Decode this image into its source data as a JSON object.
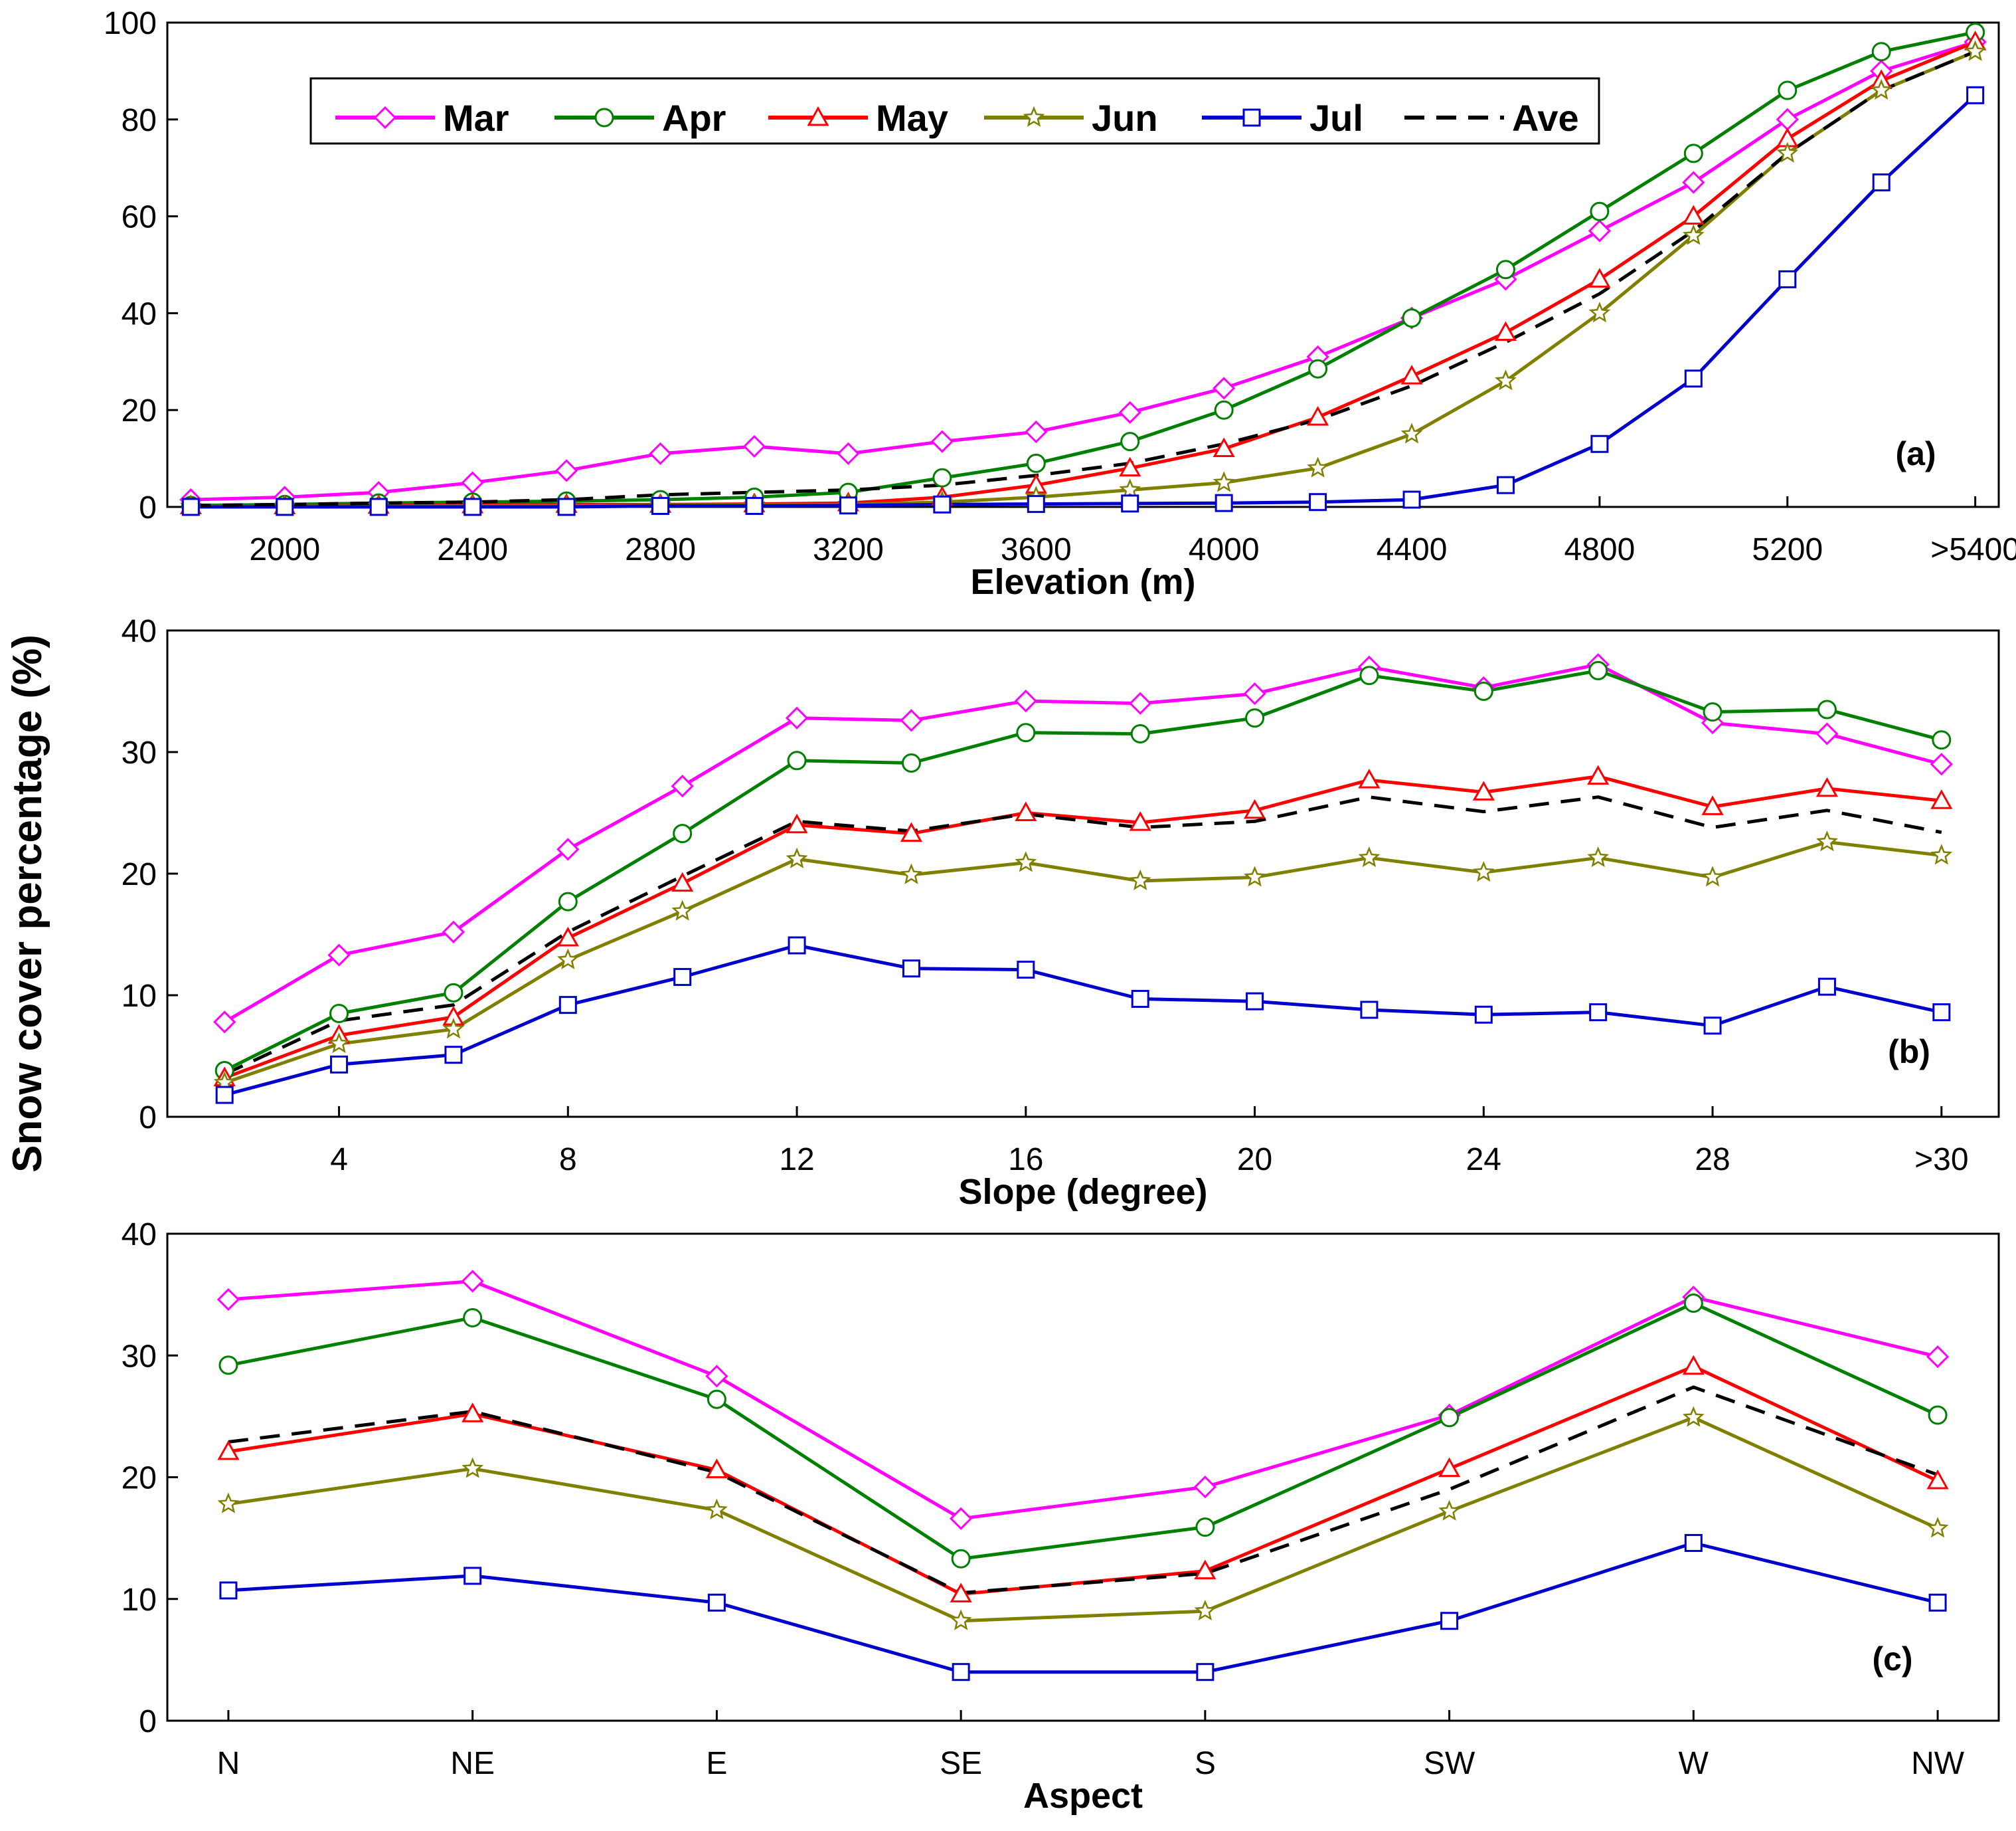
{
  "figure": {
    "y_label": "Snow cover percentage (%)"
  },
  "legend": [
    "Mar",
    "Apr",
    "May",
    "Jun",
    "Jul",
    "Ave"
  ],
  "series_style": {
    "Mar": {
      "color": "#ff00ff",
      "marker": "diamond"
    },
    "Apr": {
      "color": "#008000",
      "marker": "circle"
    },
    "May": {
      "color": "#ff0000",
      "marker": "triangle"
    },
    "Jun": {
      "color": "#808000",
      "marker": "star"
    },
    "Jul": {
      "color": "#0000cc",
      "marker": "square"
    },
    "Ave": {
      "color": "#000000",
      "marker": "none",
      "dash": "dashed"
    }
  },
  "chart_data": [
    {
      "type": "line",
      "panel": "(a)",
      "xlabel": "Elevation (m)",
      "ylabel": "Snow cover percentage (%)",
      "ylim": [
        0,
        100
      ],
      "yticks": [
        "0",
        "20",
        "40",
        "60",
        "80",
        "100"
      ],
      "x_positions": [
        1800,
        2000,
        2200,
        2400,
        2600,
        2800,
        3000,
        3200,
        3400,
        3600,
        3800,
        4000,
        4200,
        4400,
        4600,
        4800,
        5000,
        5200,
        5400,
        5600
      ],
      "xlim": [
        1750,
        5650
      ],
      "xtick_positions": [
        2000,
        2400,
        2800,
        3200,
        3600,
        4000,
        4400,
        4800,
        5200,
        5600
      ],
      "xtick_labels": [
        "2000",
        "2400",
        "2800",
        "3200",
        "3600",
        "4000",
        "4400",
        "4800",
        "5200",
        ">5400"
      ],
      "legend": [
        "Mar",
        "Apr",
        "May",
        "Jun",
        "Jul",
        "Ave"
      ],
      "series": [
        {
          "name": "Mar",
          "values": [
            1.5,
            2,
            3,
            5,
            7.5,
            11,
            12.5,
            11,
            13.5,
            15.5,
            19.5,
            24.5,
            31,
            39,
            47,
            57,
            67,
            80,
            90,
            96
          ]
        },
        {
          "name": "Apr",
          "values": [
            0.3,
            0.5,
            0.8,
            1,
            1.2,
            1.5,
            2,
            3,
            6,
            9,
            13.5,
            20,
            28.5,
            39,
            49,
            61,
            73,
            86,
            94,
            98
          ]
        },
        {
          "name": "May",
          "values": [
            0.2,
            0.2,
            0.3,
            0.4,
            0.5,
            0.5,
            0.6,
            0.8,
            2,
            4.5,
            8,
            12,
            18.5,
            27,
            36,
            47,
            60,
            76,
            88,
            96
          ]
        },
        {
          "name": "Jun",
          "values": [
            0.1,
            0.1,
            0.1,
            0.2,
            0.2,
            0.3,
            0.4,
            0.5,
            1,
            2,
            3.5,
            5,
            8,
            15,
            26,
            40,
            56,
            73,
            86,
            94
          ]
        },
        {
          "name": "Jul",
          "values": [
            0,
            0,
            0,
            0,
            0,
            0.2,
            0.2,
            0.3,
            0.5,
            0.6,
            0.7,
            0.8,
            1,
            1.5,
            4.5,
            13,
            26.5,
            47,
            67,
            85
          ]
        },
        {
          "name": "Ave",
          "values": [
            0.3,
            0.5,
            0.8,
            1,
            1.5,
            2.5,
            3,
            3.5,
            4.5,
            6.5,
            9,
            13,
            18,
            25,
            34,
            44,
            57,
            73,
            86,
            94
          ]
        }
      ]
    },
    {
      "type": "line",
      "panel": "(b)",
      "xlabel": "Slope (degree)",
      "ylabel": "Snow cover percentage (%)",
      "ylim": [
        0,
        40
      ],
      "yticks": [
        "0",
        "10",
        "20",
        "30",
        "40"
      ],
      "x_positions": [
        2,
        4,
        6,
        8,
        10,
        12,
        14,
        16,
        18,
        20,
        22,
        24,
        26,
        28,
        30,
        32
      ],
      "xlim": [
        1,
        33
      ],
      "xtick_positions": [
        4,
        8,
        12,
        16,
        20,
        24,
        28,
        32
      ],
      "xtick_labels": [
        "4",
        "8",
        "12",
        "16",
        "20",
        "24",
        "28",
        ">30"
      ],
      "legend": [
        "Mar",
        "Apr",
        "May",
        "Jun",
        "Jul",
        "Ave"
      ],
      "series": [
        {
          "name": "Mar",
          "values": [
            7.8,
            13.3,
            15.2,
            22,
            27.2,
            32.8,
            32.6,
            34.2,
            34,
            34.8,
            37,
            35.3,
            37.2,
            32.4,
            31.5,
            29
          ]
        },
        {
          "name": "Apr",
          "values": [
            3.8,
            8.5,
            10.2,
            17.7,
            23.3,
            29.3,
            29.1,
            31.6,
            31.5,
            32.8,
            36.3,
            35,
            36.7,
            33.3,
            33.5,
            31
          ]
        },
        {
          "name": "May",
          "values": [
            3.2,
            6.7,
            8.2,
            14.7,
            19.2,
            24,
            23.3,
            25,
            24.2,
            25.2,
            27.7,
            26.7,
            28,
            25.5,
            27,
            26
          ]
        },
        {
          "name": "Jun",
          "values": [
            2.8,
            6,
            7.2,
            12.9,
            16.9,
            21.2,
            19.9,
            20.9,
            19.4,
            19.7,
            21.3,
            20.1,
            21.3,
            19.7,
            22.6,
            21.5
          ]
        },
        {
          "name": "Jul",
          "values": [
            1.8,
            4.3,
            5.1,
            9.2,
            11.5,
            14.1,
            12.2,
            12.1,
            9.7,
            9.5,
            8.8,
            8.4,
            8.6,
            7.5,
            10.7,
            8.6
          ]
        },
        {
          "name": "Ave",
          "values": [
            3.5,
            7.9,
            9.2,
            15.2,
            19.8,
            24.3,
            23.5,
            24.9,
            23.8,
            24.3,
            26.3,
            25.1,
            26.3,
            23.8,
            25.2,
            23.4
          ]
        }
      ]
    },
    {
      "type": "line",
      "panel": "(c)",
      "xlabel": "Aspect",
      "ylabel": "Snow cover percentage (%)",
      "ylim": [
        0,
        40
      ],
      "yticks": [
        "0",
        "10",
        "20",
        "30",
        "40"
      ],
      "x_positions": [
        1,
        2,
        3,
        4,
        5,
        6,
        7,
        8
      ],
      "xlim": [
        0.75,
        8.25
      ],
      "xtick_positions": [
        1,
        2,
        3,
        4,
        5,
        6,
        7,
        8
      ],
      "xtick_labels": [
        "N",
        "NE",
        "E",
        "SE",
        "S",
        "SW",
        "W",
        "NW"
      ],
      "legend": [
        "Mar",
        "Apr",
        "May",
        "Jun",
        "Jul",
        "Ave"
      ],
      "series": [
        {
          "name": "Mar",
          "values": [
            34.6,
            36.1,
            28.3,
            16.6,
            19.2,
            25.1,
            34.8,
            29.9
          ]
        },
        {
          "name": "Apr",
          "values": [
            29.2,
            33.1,
            26.4,
            13.3,
            15.9,
            24.9,
            34.3,
            25.1
          ]
        },
        {
          "name": "May",
          "values": [
            22.1,
            25.2,
            20.6,
            10.4,
            12.3,
            20.7,
            29.1,
            19.7
          ]
        },
        {
          "name": "Jun",
          "values": [
            17.8,
            20.7,
            17.3,
            8.2,
            9,
            17.2,
            24.9,
            15.8
          ]
        },
        {
          "name": "Jul",
          "values": [
            10.7,
            11.9,
            9.7,
            4,
            4,
            8.2,
            14.6,
            9.7
          ]
        },
        {
          "name": "Ave",
          "values": [
            22.9,
            25.4,
            20.4,
            10.5,
            12.1,
            19,
            27.4,
            20.2
          ]
        }
      ]
    }
  ]
}
